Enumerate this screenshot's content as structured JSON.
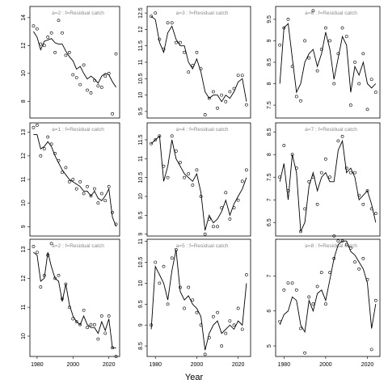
{
  "figure": {
    "xlabel": "Year"
  },
  "chart_data": [
    {
      "type": "line",
      "panel": "a=2",
      "label": "a=2  :  f=Residual catch",
      "xlim": [
        1976,
        2026
      ],
      "ylim": [
        6.8,
        14.8
      ],
      "yticks": [
        8,
        10,
        12,
        14
      ],
      "xticks": [
        1980,
        2000,
        2020
      ],
      "x": [
        1978,
        1980,
        1982,
        1984,
        1986,
        1988,
        1990,
        1992,
        1994,
        1996,
        1998,
        2000,
        2002,
        2004,
        2006,
        2008,
        2010,
        2012,
        2014,
        2016,
        2018,
        2020,
        2022,
        2024
      ],
      "fitted": [
        13.0,
        12.6,
        11.7,
        12.3,
        12.4,
        12.5,
        12.2,
        12.1,
        12.1,
        11.6,
        11.2,
        10.9,
        10.3,
        10.5,
        10.0,
        9.6,
        9.8,
        9.6,
        9.3,
        9.8,
        10.0,
        9.9,
        9.4,
        9.0
      ],
      "observed": [
        13.4,
        13.2,
        12.1,
        12.0,
        12.6,
        12.9,
        11.5,
        13.8,
        12.9,
        11.3,
        11.5,
        9.9,
        9.7,
        9.2,
        10.6,
        8.8,
        8.6,
        9.5,
        9.1,
        9.0,
        9.8,
        10.0,
        7.1,
        11.4
      ]
    },
    {
      "type": "line",
      "panel": "a=3",
      "label": "a=3  :  f=Residual catch",
      "xlim": [
        1976,
        2026
      ],
      "ylim": [
        9.3,
        12.7
      ],
      "yticks": [
        9.5,
        10.0,
        10.5,
        11.0,
        11.5,
        12.0,
        12.5
      ],
      "xticks": [
        1980,
        2000,
        2020
      ],
      "x": [
        1978,
        1980,
        1982,
        1984,
        1986,
        1988,
        1990,
        1992,
        1994,
        1996,
        1998,
        2000,
        2002,
        2004,
        2006,
        2008,
        2010,
        2012,
        2014,
        2016,
        2018,
        2020,
        2022,
        2024
      ],
      "fitted": [
        12.4,
        12.3,
        11.6,
        11.3,
        11.9,
        12.1,
        11.7,
        11.5,
        11.5,
        11.0,
        10.8,
        11.1,
        10.7,
        10.1,
        9.9,
        10.0,
        10.0,
        9.8,
        10.0,
        9.9,
        10.1,
        10.4,
        10.5,
        9.8
      ],
      "observed": [
        12.4,
        12.5,
        11.7,
        11.4,
        12.2,
        12.2,
        11.6,
        11.6,
        11.3,
        10.7,
        10.9,
        11.3,
        10.8,
        9.4,
        9.9,
        10.1,
        9.6,
        10.0,
        9.8,
        10.1,
        10.2,
        10.6,
        10.6,
        9.7
      ]
    },
    {
      "type": "line",
      "panel": "a=6",
      "label": "a=6  :  f=Residual catch",
      "xlim": [
        1976,
        2026
      ],
      "ylim": [
        7.2,
        9.8
      ],
      "yticks": [
        7.5,
        8.0,
        8.5,
        9.0,
        9.5
      ],
      "xticks": [
        1980,
        2000,
        2020
      ],
      "x": [
        1978,
        1980,
        1982,
        1984,
        1986,
        1988,
        1990,
        1992,
        1994,
        1996,
        1998,
        2000,
        2002,
        2004,
        2006,
        2008,
        2010,
        2012,
        2014,
        2016,
        2018,
        2020,
        2022,
        2024
      ],
      "fitted": [
        8.0,
        9.3,
        9.4,
        8.6,
        7.8,
        8.0,
        8.5,
        8.7,
        8.8,
        8.4,
        8.7,
        9.2,
        8.8,
        8.1,
        8.6,
        9.1,
        8.9,
        7.8,
        8.4,
        8.2,
        8.5,
        8.0,
        7.9,
        8.0
      ],
      "observed": [
        8.9,
        9.3,
        9.5,
        8.4,
        7.7,
        7.6,
        9.0,
        8.6,
        9.7,
        8.3,
        8.8,
        9.3,
        9.0,
        8.0,
        8.7,
        9.3,
        9.1,
        7.5,
        8.5,
        8.0,
        8.7,
        7.4,
        8.1,
        7.8
      ]
    },
    {
      "type": "line",
      "panel": "a=1",
      "label": "a=1  :  f=Residual catch",
      "xlim": [
        1976,
        2026
      ],
      "ylim": [
        8.6,
        13.4
      ],
      "yticks": [
        9,
        10,
        11,
        12,
        13
      ],
      "xticks": [
        1980,
        2000,
        2020
      ],
      "x": [
        1978,
        1980,
        1982,
        1984,
        1986,
        1988,
        1990,
        1992,
        1994,
        1996,
        1998,
        2000,
        2002,
        2004,
        2006,
        2008,
        2010,
        2012,
        2014,
        2016,
        2018,
        2020,
        2022,
        2024
      ],
      "fitted": [
        12.9,
        12.9,
        12.3,
        12.4,
        12.6,
        12.4,
        12.0,
        11.7,
        11.4,
        11.2,
        11.0,
        10.9,
        10.8,
        10.7,
        10.5,
        10.5,
        10.3,
        10.5,
        10.2,
        10.1,
        10.3,
        10.6,
        9.4,
        9.0
      ],
      "observed": [
        13.2,
        13.3,
        12.0,
        12.3,
        12.8,
        12.5,
        12.1,
        11.8,
        11.3,
        11.5,
        10.9,
        11.0,
        10.6,
        10.9,
        10.4,
        10.7,
        10.3,
        10.6,
        10.0,
        10.4,
        10.1,
        10.7,
        9.6,
        9.1
      ]
    },
    {
      "type": "line",
      "panel": "a=4",
      "label": "a=4  :  f=Residual catch",
      "xlim": [
        1976,
        2026
      ],
      "ylim": [
        8.95,
        11.95
      ],
      "yticks": [
        9.0,
        9.5,
        10.0,
        10.5,
        11.0,
        11.5
      ],
      "xticks": [
        1980,
        2000,
        2020
      ],
      "x": [
        1978,
        1980,
        1982,
        1984,
        1986,
        1988,
        1990,
        1992,
        1994,
        1996,
        1998,
        2000,
        2002,
        2004,
        2006,
        2008,
        2010,
        2012,
        2014,
        2016,
        2018,
        2020,
        2022,
        2024
      ],
      "fitted": [
        11.4,
        11.5,
        11.6,
        10.4,
        10.8,
        11.5,
        11.0,
        10.8,
        10.6,
        10.5,
        10.4,
        10.6,
        10.1,
        9.1,
        9.5,
        9.3,
        9.4,
        9.6,
        9.9,
        9.5,
        9.8,
        10.0,
        10.2,
        10.5
      ],
      "observed": [
        11.4,
        11.5,
        11.6,
        10.8,
        10.5,
        11.6,
        11.2,
        10.9,
        10.5,
        10.6,
        10.3,
        10.7,
        10.0,
        9.0,
        9.4,
        9.2,
        9.2,
        9.7,
        10.1,
        9.4,
        9.7,
        9.9,
        10.4,
        10.7
      ]
    },
    {
      "type": "line",
      "panel": "a=7",
      "label": "a=7  :  f=Residual catch",
      "xlim": [
        1976,
        2026
      ],
      "ylim": [
        6.2,
        8.7
      ],
      "yticks": [
        6.5,
        7.0,
        7.5,
        8.0,
        8.5
      ],
      "xticks": [
        1980,
        2000,
        2020
      ],
      "x": [
        1978,
        1980,
        1982,
        1984,
        1986,
        1988,
        1990,
        1992,
        1994,
        1996,
        1998,
        2000,
        2002,
        2004,
        2006,
        2008,
        2010,
        2012,
        2014,
        2016,
        2018,
        2020,
        2022,
        2024
      ],
      "fitted": [
        7.4,
        7.8,
        7.0,
        8.0,
        7.6,
        6.3,
        6.5,
        7.3,
        7.6,
        7.2,
        7.5,
        7.6,
        7.4,
        7.4,
        8.1,
        8.3,
        7.6,
        7.7,
        7.5,
        7.0,
        7.1,
        7.2,
        6.9,
        6.5
      ],
      "observed": [
        7.5,
        8.2,
        7.2,
        8.0,
        7.7,
        6.3,
        6.8,
        7.4,
        7.5,
        6.9,
        7.6,
        7.9,
        7.5,
        6.2,
        8.3,
        8.4,
        7.7,
        7.6,
        7.6,
        7.1,
        6.9,
        7.2,
        6.8,
        6.7
      ]
    },
    {
      "type": "line",
      "panel": "a=2b",
      "label": "a=2  :  f=Residual catch",
      "xlim": [
        1976,
        2026
      ],
      "ylim": [
        9.3,
        13.35
      ],
      "yticks": [
        10,
        11,
        12,
        13
      ],
      "xticks": [
        1980,
        2000,
        2020
      ],
      "x": [
        1978,
        1980,
        1982,
        1984,
        1986,
        1988,
        1990,
        1992,
        1994,
        1996,
        1998,
        2000,
        2002,
        2004,
        2006,
        2008,
        2010,
        2012,
        2014,
        2016,
        2018,
        2020,
        2022,
        2024
      ],
      "fitted": [
        12.9,
        12.8,
        11.9,
        12.0,
        12.9,
        12.4,
        12.0,
        11.9,
        11.2,
        11.8,
        11.1,
        10.7,
        10.5,
        10.4,
        10.7,
        10.4,
        10.3,
        10.3,
        10.1,
        10.5,
        10.2,
        10.6,
        9.6,
        9.6
      ],
      "observed": [
        13.1,
        12.9,
        11.7,
        12.1,
        12.8,
        13.2,
        12.0,
        12.1,
        11.3,
        11.8,
        11.0,
        10.6,
        10.5,
        10.4,
        10.9,
        10.3,
        10.4,
        10.4,
        9.9,
        10.7,
        10.1,
        10.7,
        9.6,
        9.3
      ]
    },
    {
      "type": "line",
      "panel": "a=5",
      "label": "a=5  :  f=Residual catch",
      "xlim": [
        1976,
        2026
      ],
      "ylim": [
        8.25,
        11.05
      ],
      "yticks": [
        8.5,
        9.0,
        9.5,
        10.0,
        10.5,
        11.0
      ],
      "xticks": [
        1980,
        2000,
        2020
      ],
      "x": [
        1978,
        1980,
        1982,
        1984,
        1986,
        1988,
        1990,
        1992,
        1994,
        1996,
        1998,
        2000,
        2002,
        2004,
        2006,
        2008,
        2010,
        2012,
        2014,
        2016,
        2018,
        2020,
        2022,
        2024
      ],
      "fitted": [
        8.9,
        10.4,
        10.2,
        10.0,
        9.6,
        10.3,
        10.8,
        9.8,
        9.6,
        9.7,
        9.5,
        9.4,
        9.2,
        8.4,
        8.8,
        9.0,
        9.1,
        8.8,
        8.9,
        9.0,
        8.9,
        9.1,
        9.0,
        10.0
      ],
      "observed": [
        9.0,
        10.5,
        10.0,
        10.4,
        9.5,
        10.6,
        10.8,
        9.9,
        9.4,
        9.9,
        9.6,
        9.3,
        9.0,
        8.3,
        8.7,
        9.2,
        9.3,
        8.5,
        8.8,
        9.1,
        9.0,
        9.4,
        8.9,
        10.2
      ]
    },
    {
      "type": "line",
      "panel": "a=8",
      "label": "a=8  :  f=Residual catch",
      "xlim": [
        1976,
        2026
      ],
      "ylim": [
        4.7,
        8.05
      ],
      "yticks": [
        5,
        6,
        7
      ],
      "xticks": [
        1980,
        2000,
        2020
      ],
      "x": [
        1978,
        1980,
        1982,
        1984,
        1986,
        1988,
        1990,
        1992,
        1994,
        1996,
        1998,
        2000,
        2002,
        2004,
        2006,
        2008,
        2010,
        2012,
        2014,
        2016,
        2018,
        2020,
        2022,
        2024
      ],
      "fitted": [
        5.6,
        5.9,
        6.0,
        6.4,
        6.3,
        5.6,
        5.4,
        6.3,
        6.0,
        6.5,
        6.6,
        6.3,
        6.9,
        7.5,
        7.9,
        8.0,
        8.0,
        7.7,
        7.6,
        7.4,
        7.2,
        6.8,
        5.5,
        6.2
      ],
      "observed": [
        5.7,
        6.6,
        6.8,
        6.8,
        6.6,
        5.5,
        4.8,
        6.4,
        6.2,
        6.7,
        7.1,
        6.2,
        7.1,
        7.5,
        8.0,
        8.0,
        7.9,
        7.8,
        7.4,
        7.2,
        7.5,
        6.9,
        4.9,
        6.3
      ]
    }
  ]
}
